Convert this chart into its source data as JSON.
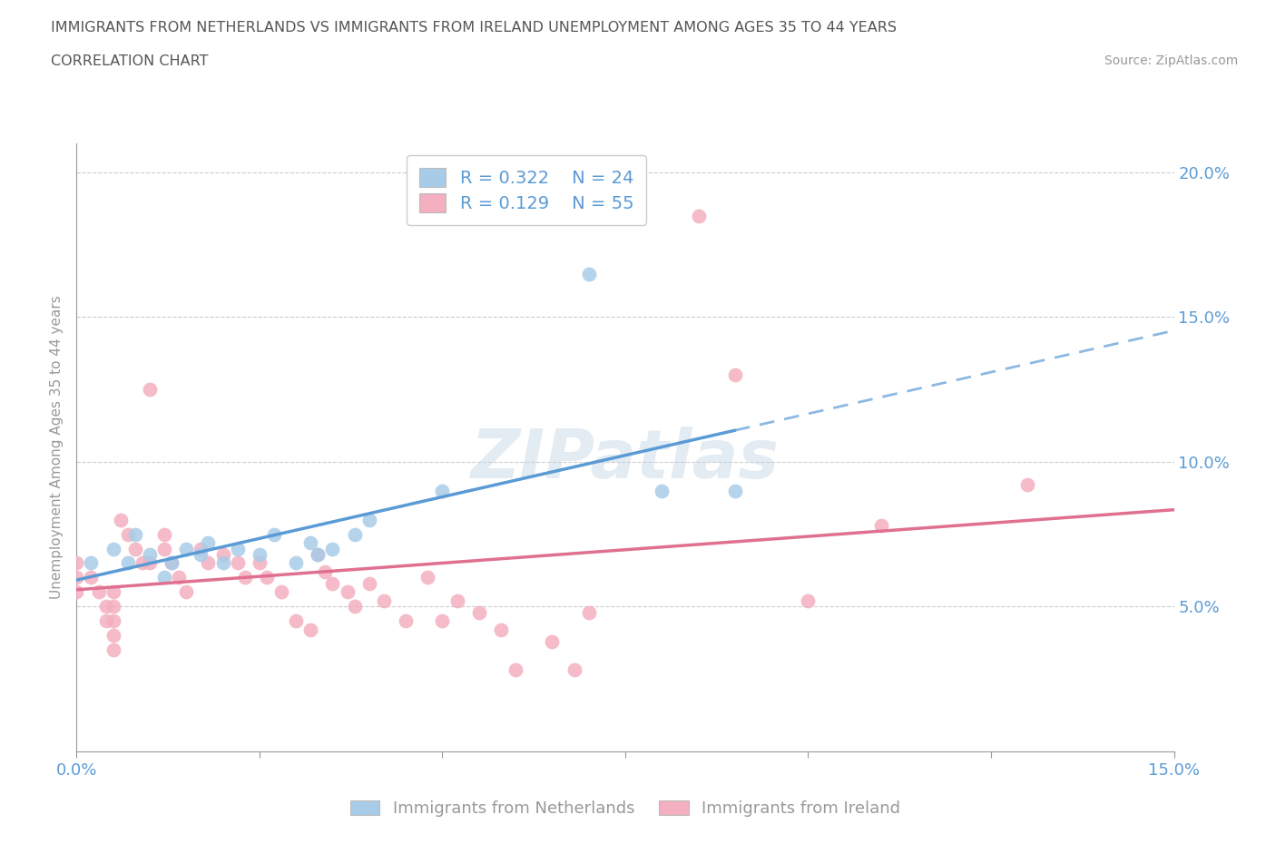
{
  "title_line1": "IMMIGRANTS FROM NETHERLANDS VS IMMIGRANTS FROM IRELAND UNEMPLOYMENT AMONG AGES 35 TO 44 YEARS",
  "title_line2": "CORRELATION CHART",
  "source_text": "Source: ZipAtlas.com",
  "ylabel": "Unemployment Among Ages 35 to 44 years",
  "xmin": 0.0,
  "xmax": 0.15,
  "ymin": 0.0,
  "ymax": 0.21,
  "ytick_values": [
    0.0,
    0.05,
    0.1,
    0.15,
    0.2
  ],
  "xtick_values": [
    0.0,
    0.025,
    0.05,
    0.075,
    0.1,
    0.125,
    0.15
  ],
  "netherlands_color": "#a8cce8",
  "ireland_color": "#f4afc0",
  "netherlands_line_color": "#5b9bd5",
  "ireland_line_color": "#e07090",
  "netherlands_R": 0.322,
  "netherlands_N": 24,
  "ireland_R": 0.129,
  "ireland_N": 55,
  "watermark": "ZIPatlas",
  "legend_label_netherlands": "Immigrants from Netherlands",
  "legend_label_ireland": "Immigrants from Ireland",
  "netherlands_x": [
    0.002,
    0.005,
    0.007,
    0.008,
    0.01,
    0.012,
    0.013,
    0.015,
    0.017,
    0.018,
    0.02,
    0.022,
    0.025,
    0.027,
    0.03,
    0.032,
    0.033,
    0.035,
    0.038,
    0.04,
    0.05,
    0.07,
    0.08,
    0.09
  ],
  "netherlands_y": [
    0.065,
    0.07,
    0.065,
    0.075,
    0.068,
    0.06,
    0.065,
    0.07,
    0.068,
    0.072,
    0.065,
    0.07,
    0.068,
    0.075,
    0.065,
    0.072,
    0.068,
    0.07,
    0.075,
    0.08,
    0.09,
    0.165,
    0.09,
    0.09
  ],
  "ireland_x": [
    0.0,
    0.0,
    0.0,
    0.002,
    0.003,
    0.004,
    0.004,
    0.005,
    0.005,
    0.005,
    0.005,
    0.005,
    0.006,
    0.007,
    0.008,
    0.009,
    0.01,
    0.01,
    0.012,
    0.012,
    0.013,
    0.014,
    0.015,
    0.017,
    0.018,
    0.02,
    0.022,
    0.023,
    0.025,
    0.026,
    0.028,
    0.03,
    0.032,
    0.033,
    0.034,
    0.035,
    0.037,
    0.038,
    0.04,
    0.042,
    0.045,
    0.048,
    0.05,
    0.052,
    0.055,
    0.058,
    0.06,
    0.065,
    0.068,
    0.07,
    0.085,
    0.09,
    0.1,
    0.11,
    0.13
  ],
  "ireland_y": [
    0.065,
    0.06,
    0.055,
    0.06,
    0.055,
    0.05,
    0.045,
    0.055,
    0.05,
    0.045,
    0.04,
    0.035,
    0.08,
    0.075,
    0.07,
    0.065,
    0.125,
    0.065,
    0.075,
    0.07,
    0.065,
    0.06,
    0.055,
    0.07,
    0.065,
    0.068,
    0.065,
    0.06,
    0.065,
    0.06,
    0.055,
    0.045,
    0.042,
    0.068,
    0.062,
    0.058,
    0.055,
    0.05,
    0.058,
    0.052,
    0.045,
    0.06,
    0.045,
    0.052,
    0.048,
    0.042,
    0.028,
    0.038,
    0.028,
    0.048,
    0.185,
    0.13,
    0.052,
    0.078,
    0.092
  ],
  "background_color": "#ffffff",
  "grid_color": "#cccccc",
  "title_color": "#555555",
  "axis_label_color": "#5b9bd5",
  "tick_color": "#999999"
}
